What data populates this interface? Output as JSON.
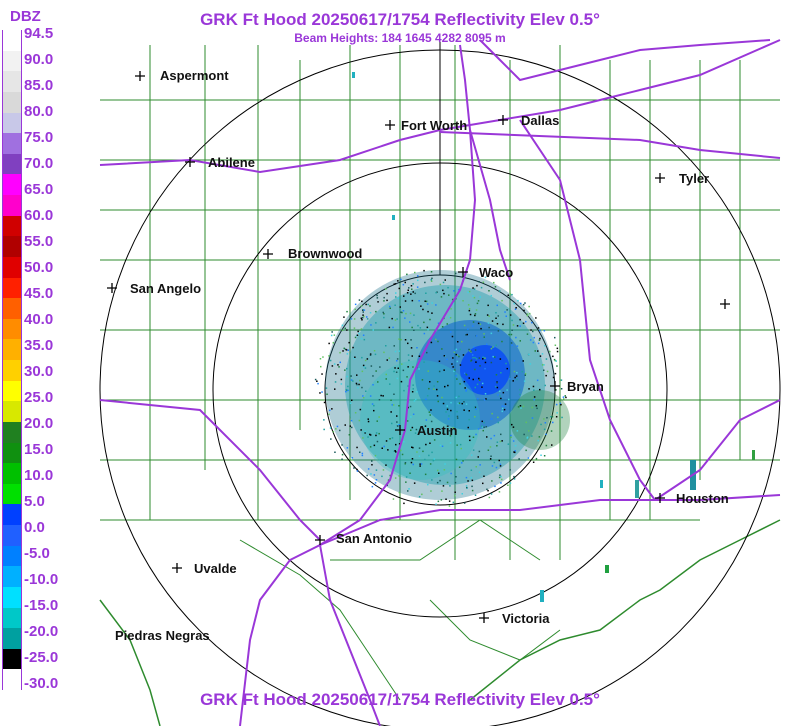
{
  "title": "GRK Ft Hood 20250617/1754 Reflectivity Elev 0.5°",
  "beam_heights": "Beam Heights: 184 1645 4282 8095 m",
  "bottom_title": "GRK Ft Hood 20250617/1754 Reflectivity Elev 0.5°",
  "legend": {
    "unit": "DBZ",
    "ticks": [
      "94.5",
      "90.0",
      "85.0",
      "80.0",
      "75.0",
      "70.0",
      "65.0",
      "60.0",
      "55.0",
      "50.0",
      "45.0",
      "40.0",
      "35.0",
      "30.0",
      "25.0",
      "20.0",
      "15.0",
      "10.0",
      "5.0",
      "0.0",
      "-5.0",
      "-10.0",
      "-15.0",
      "-20.0",
      "-25.0",
      "-30.0"
    ],
    "colors": [
      "#ffffff",
      "#f2f2f2",
      "#e6e6e6",
      "#d9d9d9",
      "#c8c8e8",
      "#a070e0",
      "#8040c0",
      "#ff00ff",
      "#ff00cc",
      "#d00000",
      "#b00000",
      "#e00000",
      "#ff2000",
      "#ff6000",
      "#ff8c00",
      "#ffb000",
      "#ffd000",
      "#ffff00",
      "#d8e800",
      "#208020",
      "#109010",
      "#00c000",
      "#00e000",
      "#0040ff",
      "#2060ff",
      "#0080ff",
      "#00b0ff",
      "#00e0ff",
      "#00c8c8",
      "#00a0a0",
      "#000000",
      "#ffffff"
    ]
  },
  "cities": [
    {
      "name": "Aspermont"
    },
    {
      "name": "Fort Worth"
    },
    {
      "name": "Dallas"
    },
    {
      "name": "Abilene"
    },
    {
      "name": "Tyler"
    },
    {
      "name": "Brownwood"
    },
    {
      "name": "Waco"
    },
    {
      "name": "San Angelo"
    },
    {
      "name": "Bryan"
    },
    {
      "name": "Austin"
    },
    {
      "name": "Houston"
    },
    {
      "name": "San Antonio"
    },
    {
      "name": "Uvalde"
    },
    {
      "name": "Victoria"
    },
    {
      "name": "Piedras Negras"
    }
  ]
}
